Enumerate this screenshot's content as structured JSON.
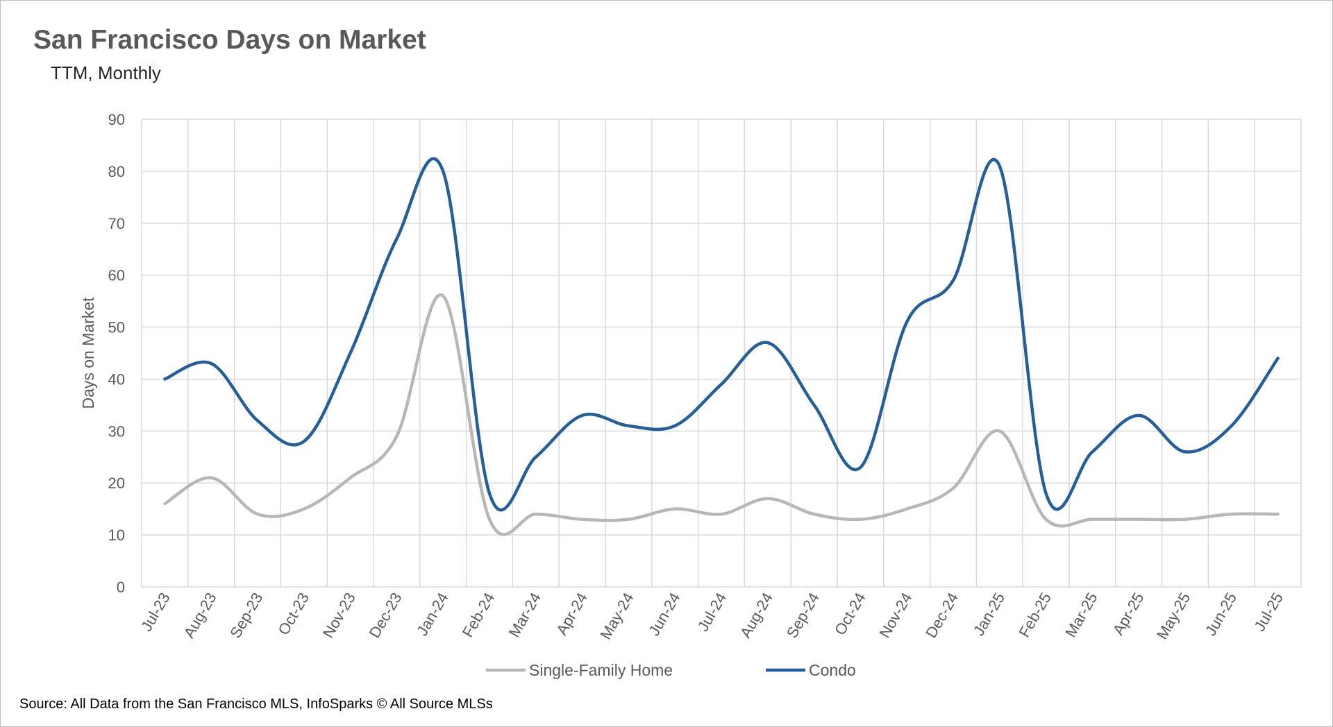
{
  "colors": {
    "sfh": "#b7b7b7",
    "condo": "#255e98",
    "grid": "#d9d9d9",
    "text": "#595959"
  },
  "chart_data": {
    "type": "line",
    "title": "San Francisco Days on Market",
    "subtitle": "TTM, Monthly",
    "ylabel": "Days on Market",
    "xlabel": "",
    "ylim": [
      0,
      90
    ],
    "y_ticks": [
      0,
      10,
      20,
      30,
      40,
      50,
      60,
      70,
      80,
      90
    ],
    "grid": true,
    "legend_position": "bottom",
    "categories": [
      "Jul-23",
      "Aug-23",
      "Sep-23",
      "Oct-23",
      "Nov-23",
      "Dec-23",
      "Jan-24",
      "Feb-24",
      "Mar-24",
      "Apr-24",
      "May-24",
      "Jun-24",
      "Jul-24",
      "Aug-24",
      "Sep-24",
      "Oct-24",
      "Nov-24",
      "Dec-24",
      "Jan-25",
      "Feb-25",
      "Mar-25",
      "Apr-25",
      "May-25",
      "Jun-25",
      "Jul-25"
    ],
    "series": [
      {
        "name": "Single-Family Home",
        "color": "#b7b7b7",
        "values": [
          16,
          21,
          14,
          15,
          21,
          29,
          56,
          13,
          14,
          13,
          13,
          15,
          14,
          17,
          14,
          13,
          15,
          19,
          30,
          13,
          13,
          13,
          13,
          14,
          14
        ]
      },
      {
        "name": "Condo",
        "color": "#255e98",
        "values": [
          40,
          43,
          32,
          28,
          45,
          67,
          80,
          18,
          25,
          33,
          31,
          31,
          39,
          47,
          35,
          23,
          51,
          59,
          81,
          18,
          26,
          33,
          26,
          31,
          44
        ]
      }
    ],
    "source": "Source: All Data from the San Francisco MLS, InfoSparks © All Source MLSs"
  }
}
